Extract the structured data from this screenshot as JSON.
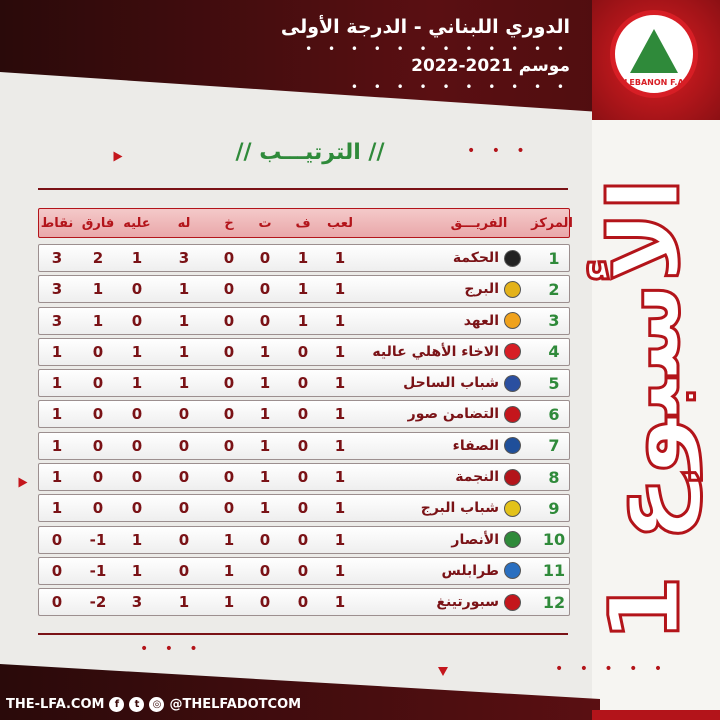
{
  "header": {
    "title": "الدوري اللبناني - الدرجة الأولى",
    "season": "موسم 2021-2022",
    "logo_text": "LEBANON F.A"
  },
  "section_title": "// الترتيـــب //",
  "week_label": "الأسبوع 1",
  "colors": {
    "primary": "#b3141a",
    "dark": "#3a0a0a",
    "green": "#2f8a3a"
  },
  "table": {
    "headers": {
      "rank": "المركز",
      "team": "الفريـــق",
      "played": "لعب",
      "won": "ف",
      "draw": "ت",
      "lost": "خ",
      "gf": "له",
      "ga": "عليه",
      "gd": "فارق",
      "pts": "نقاط"
    },
    "rows": [
      {
        "rank": "1",
        "team": "الحكمة",
        "played": "1",
        "won": "1",
        "draw": "0",
        "lost": "0",
        "gf": "3",
        "ga": "1",
        "gd": "2",
        "pts": "3",
        "badge": "#222"
      },
      {
        "rank": "2",
        "team": "البرج",
        "played": "1",
        "won": "1",
        "draw": "0",
        "lost": "0",
        "gf": "1",
        "ga": "0",
        "gd": "1",
        "pts": "3",
        "badge": "#e3b21a"
      },
      {
        "rank": "3",
        "team": "العهد",
        "played": "1",
        "won": "1",
        "draw": "0",
        "lost": "0",
        "gf": "1",
        "ga": "0",
        "gd": "1",
        "pts": "3",
        "badge": "#f0a21c"
      },
      {
        "rank": "4",
        "team": "الاخاء الأهلي عاليه",
        "played": "1",
        "won": "0",
        "draw": "1",
        "lost": "0",
        "gf": "1",
        "ga": "1",
        "gd": "0",
        "pts": "1",
        "badge": "#d71e25"
      },
      {
        "rank": "5",
        "team": "شباب الساحل",
        "played": "1",
        "won": "0",
        "draw": "1",
        "lost": "0",
        "gf": "1",
        "ga": "1",
        "gd": "0",
        "pts": "1",
        "badge": "#2a4fa0"
      },
      {
        "rank": "6",
        "team": "التضامن صور",
        "played": "1",
        "won": "0",
        "draw": "1",
        "lost": "0",
        "gf": "0",
        "ga": "0",
        "gd": "0",
        "pts": "1",
        "badge": "#c4161c"
      },
      {
        "rank": "7",
        "team": "الصفاء",
        "played": "1",
        "won": "0",
        "draw": "1",
        "lost": "0",
        "gf": "0",
        "ga": "0",
        "gd": "0",
        "pts": "1",
        "badge": "#1f4f9a"
      },
      {
        "rank": "8",
        "team": "النجمة",
        "played": "1",
        "won": "0",
        "draw": "1",
        "lost": "0",
        "gf": "0",
        "ga": "0",
        "gd": "0",
        "pts": "1",
        "badge": "#b3141a"
      },
      {
        "rank": "9",
        "team": "شباب البرج",
        "played": "1",
        "won": "0",
        "draw": "1",
        "lost": "0",
        "gf": "0",
        "ga": "0",
        "gd": "0",
        "pts": "1",
        "badge": "#e3c21a"
      },
      {
        "rank": "10",
        "team": "الأنصار",
        "played": "1",
        "won": "0",
        "draw": "0",
        "lost": "1",
        "gf": "0",
        "ga": "1",
        "gd": "-1",
        "pts": "0",
        "badge": "#2f8a3a"
      },
      {
        "rank": "11",
        "team": "طرابلس",
        "played": "1",
        "won": "0",
        "draw": "0",
        "lost": "1",
        "gf": "0",
        "ga": "1",
        "gd": "-1",
        "pts": "0",
        "badge": "#2a6fc0"
      },
      {
        "rank": "12",
        "team": "سبورتينغ",
        "played": "1",
        "won": "0",
        "draw": "0",
        "lost": "1",
        "gf": "1",
        "ga": "3",
        "gd": "-2",
        "pts": "0",
        "badge": "#c4161c"
      }
    ]
  },
  "footer": {
    "website": "THE-LFA.COM",
    "handle": "@THELFADOTCOM",
    "social_icons": [
      "facebook-icon",
      "twitter-icon",
      "instagram-icon"
    ]
  }
}
